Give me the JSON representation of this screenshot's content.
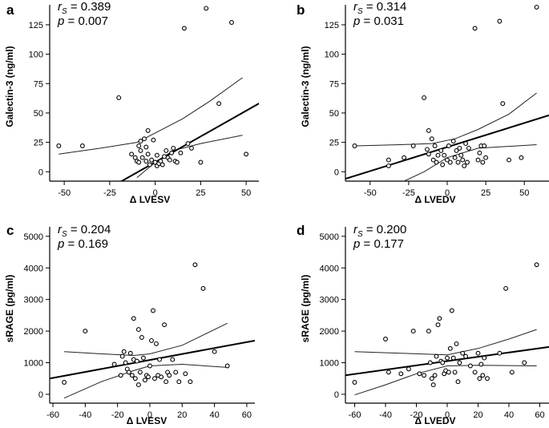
{
  "chart_data": [
    {
      "type": "scatter",
      "letter": "a",
      "xlabel": "Δ LVESV",
      "ylabel": "Galectin-3 (ng/ml)",
      "stats": {
        "rs_symbol": "r",
        "rs_sub": "S",
        "rs_value": "= 0.389",
        "p_symbol": "p",
        "p_value": "= 0.007"
      },
      "xlim": [
        -58,
        57
      ],
      "ylim": [
        -8,
        142
      ],
      "xticks": [
        -50,
        -25,
        0,
        25,
        50
      ],
      "yticks": [
        0,
        25,
        50,
        75,
        100,
        125
      ],
      "points": [
        [
          -53,
          22
        ],
        [
          -40,
          22
        ],
        [
          -20,
          63
        ],
        [
          -13,
          15
        ],
        [
          -11,
          12
        ],
        [
          -10,
          9
        ],
        [
          -9,
          22
        ],
        [
          -9,
          8
        ],
        [
          -8,
          18
        ],
        [
          -8,
          26
        ],
        [
          -7,
          12
        ],
        [
          -6,
          28
        ],
        [
          -5,
          9
        ],
        [
          -5,
          21
        ],
        [
          -4,
          15
        ],
        [
          -4,
          35
        ],
        [
          -3,
          6
        ],
        [
          -2,
          10
        ],
        [
          -1,
          27
        ],
        [
          0,
          8
        ],
        [
          1,
          5
        ],
        [
          1,
          14
        ],
        [
          2,
          7
        ],
        [
          3,
          9
        ],
        [
          4,
          6
        ],
        [
          5,
          13
        ],
        [
          6,
          18
        ],
        [
          7,
          12
        ],
        [
          8,
          10
        ],
        [
          9,
          16
        ],
        [
          10,
          20
        ],
        [
          11,
          9
        ],
        [
          12,
          8
        ],
        [
          14,
          16
        ],
        [
          16,
          122
        ],
        [
          18,
          24
        ],
        [
          20,
          20
        ],
        [
          25,
          8
        ],
        [
          28,
          139
        ],
        [
          35,
          58
        ],
        [
          42,
          127
        ],
        [
          50,
          15
        ]
      ],
      "fit": {
        "x0": -55,
        "y0": -40,
        "x1": 65,
        "y1": 65
      },
      "ci_upper": [
        [
          -53,
          15
        ],
        [
          -30,
          20
        ],
        [
          -10,
          25
        ],
        [
          0,
          33
        ],
        [
          15,
          45
        ],
        [
          30,
          60
        ],
        [
          48,
          80
        ]
      ],
      "ci_lower": [
        [
          -10,
          -5
        ],
        [
          0,
          8
        ],
        [
          10,
          18
        ],
        [
          25,
          24
        ],
        [
          48,
          31
        ]
      ]
    },
    {
      "type": "scatter",
      "letter": "b",
      "xlabel": "Δ LVEDV",
      "ylabel": "Galectin-3 (ng/ml)",
      "stats": {
        "rs_symbol": "r",
        "rs_sub": "S",
        "rs_value": "= 0.314",
        "p_symbol": "p",
        "p_value": "= 0.031"
      },
      "xlim": [
        -66,
        66
      ],
      "ylim": [
        -8,
        142
      ],
      "xticks": [
        -50,
        -25,
        0,
        25,
        50
      ],
      "yticks": [
        0,
        25,
        50,
        75,
        100,
        125
      ],
      "points": [
        [
          -60,
          22
        ],
        [
          -38,
          10
        ],
        [
          -38,
          5
        ],
        [
          -28,
          12
        ],
        [
          -22,
          22
        ],
        [
          -15,
          63
        ],
        [
          -13,
          19
        ],
        [
          -12,
          15
        ],
        [
          -12,
          35
        ],
        [
          -10,
          28
        ],
        [
          -9,
          10
        ],
        [
          -8,
          22
        ],
        [
          -7,
          8
        ],
        [
          -6,
          14
        ],
        [
          -4,
          18
        ],
        [
          -3,
          6
        ],
        [
          -2,
          14
        ],
        [
          0,
          10
        ],
        [
          1,
          22
        ],
        [
          2,
          8
        ],
        [
          4,
          26
        ],
        [
          5,
          12
        ],
        [
          6,
          18
        ],
        [
          7,
          8
        ],
        [
          8,
          20
        ],
        [
          9,
          14
        ],
        [
          10,
          10
        ],
        [
          11,
          5
        ],
        [
          12,
          24
        ],
        [
          13,
          8
        ],
        [
          14,
          20
        ],
        [
          18,
          122
        ],
        [
          20,
          10
        ],
        [
          21,
          16
        ],
        [
          22,
          22
        ],
        [
          23,
          8
        ],
        [
          24,
          22
        ],
        [
          25,
          12
        ],
        [
          34,
          128
        ],
        [
          36,
          58
        ],
        [
          40,
          10
        ],
        [
          48,
          12
        ],
        [
          58,
          140
        ]
      ],
      "fit": {
        "x0": -66,
        "y0": -6,
        "x1": 66,
        "y1": 48
      },
      "ci_upper": [
        [
          -60,
          22
        ],
        [
          -30,
          23
        ],
        [
          -10,
          24
        ],
        [
          5,
          28
        ],
        [
          20,
          36
        ],
        [
          40,
          49
        ],
        [
          58,
          67
        ]
      ],
      "ci_lower": [
        [
          -28,
          -8
        ],
        [
          -15,
          0
        ],
        [
          0,
          12
        ],
        [
          20,
          20
        ],
        [
          58,
          23
        ]
      ]
    },
    {
      "type": "scatter",
      "letter": "c",
      "xlabel": "Δ LVESV",
      "ylabel": "sRAGE (pg/ml)",
      "stats": {
        "rs_symbol": "r",
        "rs_sub": "S",
        "rs_value": "= 0.204",
        "p_symbol": "p",
        "p_value": "= 0.169"
      },
      "xlim": [
        -62,
        65
      ],
      "ylim": [
        -280,
        5300
      ],
      "xticks": [
        -60,
        -40,
        -20,
        0,
        20,
        40,
        60
      ],
      "yticks": [
        0,
        1000,
        2000,
        3000,
        4000,
        5000
      ],
      "points": [
        [
          -53,
          380
        ],
        [
          -40,
          2000
        ],
        [
          -22,
          950
        ],
        [
          -18,
          600
        ],
        [
          -17,
          1200
        ],
        [
          -16,
          1350
        ],
        [
          -15,
          1000
        ],
        [
          -14,
          800
        ],
        [
          -13,
          700
        ],
        [
          -12,
          1300
        ],
        [
          -11,
          600
        ],
        [
          -10,
          2400
        ],
        [
          -10,
          1100
        ],
        [
          -9,
          500
        ],
        [
          -8,
          1050
        ],
        [
          -7,
          300
        ],
        [
          -7,
          2050
        ],
        [
          -6,
          700
        ],
        [
          -5,
          1800
        ],
        [
          -4,
          1150
        ],
        [
          -3,
          450
        ],
        [
          -2,
          600
        ],
        [
          -1,
          550
        ],
        [
          0,
          900
        ],
        [
          1,
          1700
        ],
        [
          2,
          2650
        ],
        [
          3,
          500
        ],
        [
          4,
          1600
        ],
        [
          5,
          600
        ],
        [
          6,
          1100
        ],
        [
          7,
          550
        ],
        [
          9,
          2200
        ],
        [
          10,
          400
        ],
        [
          11,
          700
        ],
        [
          12,
          600
        ],
        [
          14,
          1100
        ],
        [
          16,
          700
        ],
        [
          18,
          400
        ],
        [
          22,
          650
        ],
        [
          25,
          400
        ],
        [
          28,
          4100
        ],
        [
          33,
          3350
        ],
        [
          40,
          1350
        ],
        [
          48,
          900
        ]
      ],
      "fit": {
        "x0": -62,
        "y0": 500,
        "x1": 65,
        "y1": 1700
      },
      "ci_upper": [
        [
          -53,
          1350
        ],
        [
          -30,
          1280
        ],
        [
          -10,
          1230
        ],
        [
          0,
          1280
        ],
        [
          20,
          1550
        ],
        [
          48,
          2250
        ]
      ],
      "ci_lower": [
        [
          -53,
          -120
        ],
        [
          -30,
          400
        ],
        [
          -10,
          750
        ],
        [
          0,
          900
        ],
        [
          20,
          950
        ],
        [
          48,
          850
        ]
      ]
    },
    {
      "type": "scatter",
      "letter": "d",
      "xlabel": "Δ LVEDV",
      "ylabel": "sRAGE (pg/ml)",
      "stats": {
        "rs_symbol": "r",
        "rs_sub": "S",
        "rs_value": "= 0.200",
        "p_symbol": "p",
        "p_value": "= 0.177"
      },
      "xlim": [
        -66,
        66
      ],
      "ylim": [
        -280,
        5300
      ],
      "xticks": [
        -60,
        -40,
        -20,
        0,
        20,
        40,
        60
      ],
      "yticks": [
        0,
        1000,
        2000,
        3000,
        4000,
        5000
      ],
      "points": [
        [
          -60,
          380
        ],
        [
          -40,
          1750
        ],
        [
          -38,
          700
        ],
        [
          -30,
          650
        ],
        [
          -25,
          800
        ],
        [
          -22,
          2000
        ],
        [
          -18,
          650
        ],
        [
          -15,
          600
        ],
        [
          -12,
          2000
        ],
        [
          -11,
          1000
        ],
        [
          -10,
          500
        ],
        [
          -9,
          300
        ],
        [
          -8,
          600
        ],
        [
          -7,
          1200
        ],
        [
          -6,
          2200
        ],
        [
          -5,
          2400
        ],
        [
          -4,
          1050
        ],
        [
          -3,
          1000
        ],
        [
          -2,
          650
        ],
        [
          -1,
          750
        ],
        [
          0,
          1150
        ],
        [
          1,
          700
        ],
        [
          2,
          1450
        ],
        [
          3,
          2650
        ],
        [
          4,
          1150
        ],
        [
          5,
          700
        ],
        [
          6,
          1600
        ],
        [
          7,
          400
        ],
        [
          8,
          1000
        ],
        [
          10,
          1300
        ],
        [
          12,
          1200
        ],
        [
          15,
          900
        ],
        [
          18,
          700
        ],
        [
          20,
          1300
        ],
        [
          21,
          500
        ],
        [
          22,
          950
        ],
        [
          23,
          600
        ],
        [
          24,
          1150
        ],
        [
          26,
          500
        ],
        [
          34,
          1300
        ],
        [
          38,
          3350
        ],
        [
          42,
          700
        ],
        [
          50,
          1000
        ],
        [
          58,
          4100
        ]
      ],
      "fit": {
        "x0": -66,
        "y0": 600,
        "x1": 66,
        "y1": 1500
      },
      "ci_upper": [
        [
          -60,
          1350
        ],
        [
          -30,
          1300
        ],
        [
          0,
          1250
        ],
        [
          20,
          1450
        ],
        [
          40,
          1750
        ],
        [
          58,
          2050
        ]
      ],
      "ci_lower": [
        [
          -60,
          -20
        ],
        [
          -40,
          300
        ],
        [
          -20,
          650
        ],
        [
          0,
          900
        ],
        [
          20,
          920
        ],
        [
          58,
          900
        ]
      ]
    }
  ]
}
